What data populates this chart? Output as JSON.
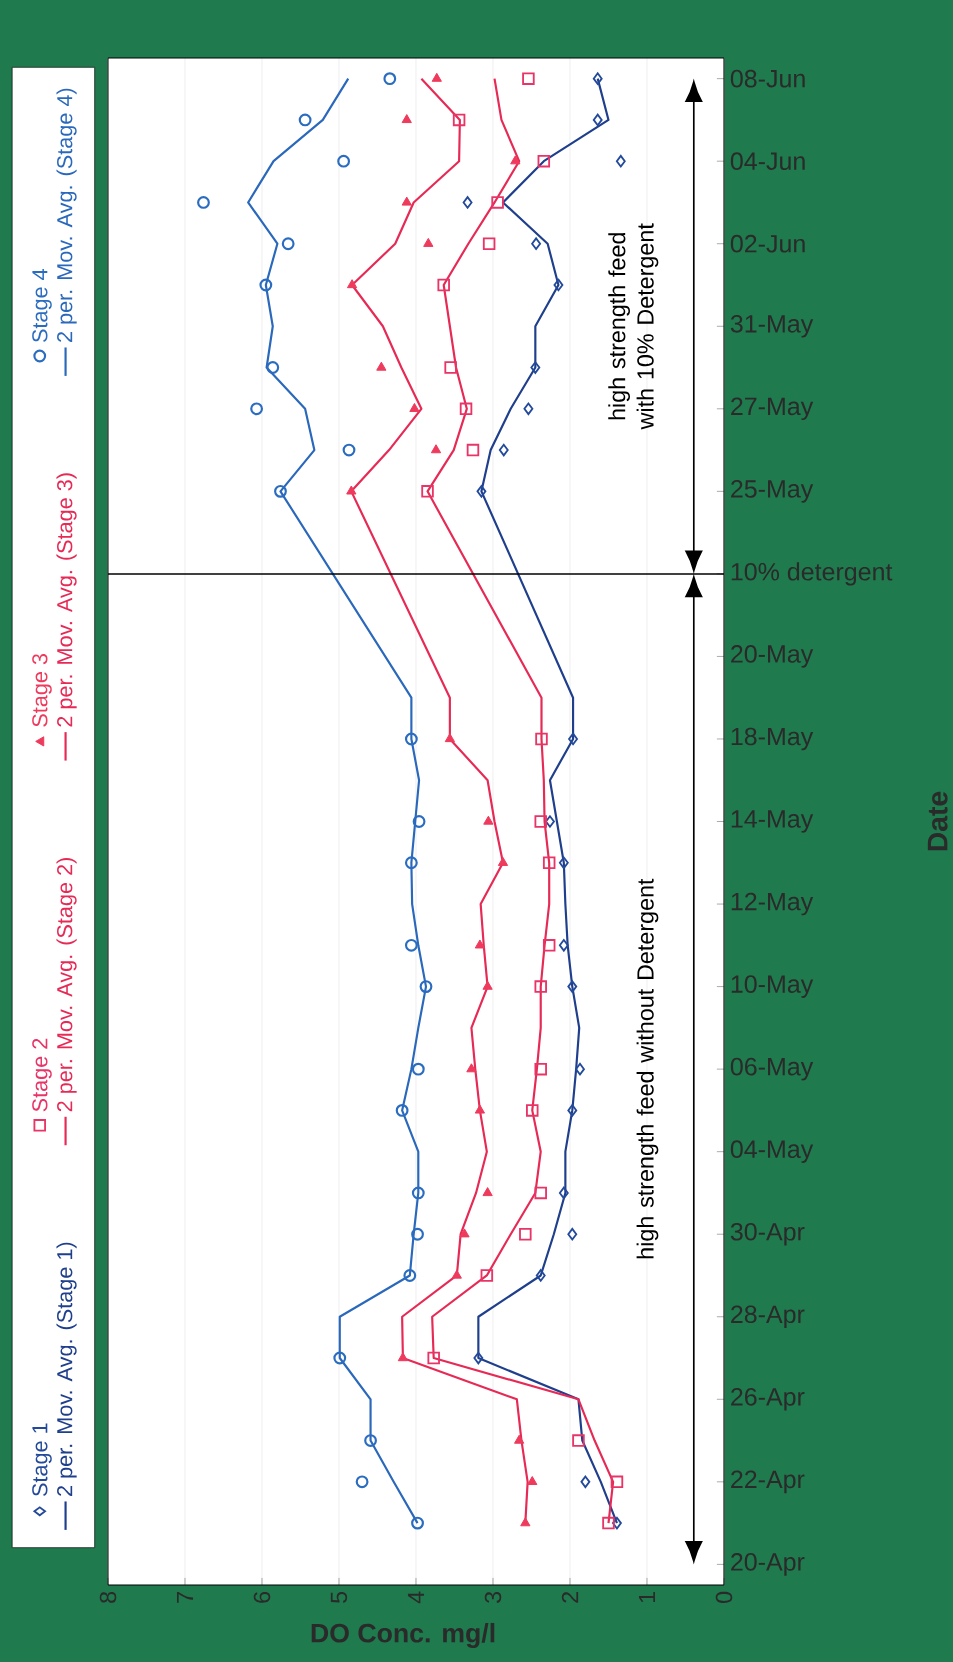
{
  "chart_data": {
    "type": "line",
    "orientation": "horizontal",
    "xlabel": "DO Conc. mg/l",
    "ylabel": "Date",
    "categories": [
      "08-Jun",
      null,
      "04-Jun",
      null,
      "02-Jun",
      null,
      "31-May",
      null,
      "27-May",
      null,
      "25-May",
      null,
      "10% detergent",
      null,
      "20-May",
      null,
      "18-May",
      null,
      "14-May",
      null,
      "12-May",
      null,
      "10-May",
      null,
      "06-May",
      null,
      "04-May",
      null,
      "30-Apr",
      null,
      "28-Apr",
      null,
      "26-Apr",
      null,
      "22-Apr",
      null,
      "20-Apr"
    ],
    "xlim": [
      8,
      0
    ],
    "xticks": [
      8,
      7,
      6,
      5,
      4,
      3,
      2,
      1,
      0
    ],
    "grid": "x",
    "legend": "left",
    "ref_lines": [
      {
        "axis": "y",
        "value": "10% detergent",
        "color": "#000000"
      }
    ],
    "annotations": [
      "high strength feed with 10% Detergent",
      "high strength feed without Detergent"
    ],
    "series": [
      {
        "name": "Stage 1",
        "type": "scatter",
        "marker": "diamond",
        "color": "#234a9a",
        "values": [
          1.64,
          1.64,
          1.34,
          3.33,
          2.44,
          2.15,
          null,
          2.45,
          2.54,
          2.86,
          3.15,
          null,
          null,
          null,
          null,
          null,
          1.96,
          null,
          2.26,
          2.08,
          null,
          2.08,
          1.97,
          null,
          1.87,
          1.97,
          null,
          2.08,
          1.97,
          2.38,
          null,
          3.19,
          null,
          null,
          1.8,
          1.39,
          null
        ]
      },
      {
        "name": "Stage 2",
        "type": "scatter",
        "marker": "square",
        "color": "#e83466",
        "values": [
          2.54,
          3.44,
          2.34,
          2.94,
          3.05,
          3.64,
          null,
          3.55,
          3.35,
          3.26,
          3.85,
          null,
          null,
          null,
          null,
          null,
          2.37,
          null,
          2.38,
          2.27,
          null,
          2.27,
          2.38,
          null,
          2.38,
          2.49,
          null,
          2.38,
          2.58,
          3.08,
          null,
          3.77,
          null,
          1.89,
          1.39,
          1.5,
          null
        ]
      },
      {
        "name": "Stage 3",
        "type": "scatter",
        "marker": "triangle",
        "color": "#ee3a5c",
        "values": [
          3.73,
          4.12,
          2.71,
          4.12,
          3.84,
          4.83,
          null,
          4.45,
          4.02,
          3.74,
          4.84,
          null,
          null,
          null,
          null,
          null,
          3.56,
          null,
          3.06,
          2.87,
          null,
          3.17,
          3.07,
          null,
          3.28,
          3.17,
          null,
          3.07,
          3.37,
          3.47,
          null,
          4.17,
          null,
          2.66,
          2.49,
          2.58,
          null
        ]
      },
      {
        "name": "Stage 4",
        "type": "scatter",
        "marker": "circle",
        "color": "#2a6cc0",
        "values": [
          4.34,
          5.44,
          4.94,
          6.76,
          5.66,
          5.95,
          null,
          5.86,
          6.07,
          4.87,
          5.76,
          null,
          null,
          null,
          null,
          null,
          4.06,
          null,
          3.96,
          4.06,
          null,
          4.06,
          3.87,
          null,
          3.97,
          4.18,
          null,
          3.97,
          3.98,
          4.08,
          null,
          4.99,
          null,
          4.59,
          4.7,
          3.98,
          null
        ]
      },
      {
        "name": "2 per. Mov. Avg. (Stage 1)",
        "type": "line",
        "line_style": "solid",
        "color": "#1f3f8c",
        "values": [
          1.64,
          1.5,
          2.34,
          2.87,
          2.29,
          2.15,
          2.45,
          2.45,
          2.77,
          3.03,
          3.15,
          null,
          null,
          null,
          null,
          1.96,
          1.96,
          2.26,
          2.17,
          2.08,
          2.06,
          2.03,
          1.97,
          1.88,
          1.92,
          1.97,
          2.06,
          2.06,
          2.21,
          2.38,
          3.19,
          3.19,
          1.89,
          1.84,
          1.6,
          1.39,
          null
        ]
      },
      {
        "name": "2 per. Mov. Avg. (Stage 2)",
        "type": "line",
        "line_style": "solid",
        "color": "#e62a55",
        "values": [
          2.98,
          2.89,
          2.66,
          2.98,
          3.32,
          3.64,
          3.56,
          3.48,
          3.34,
          3.51,
          3.85,
          null,
          null,
          null,
          null,
          2.37,
          2.37,
          2.34,
          2.33,
          2.27,
          2.27,
          2.33,
          2.38,
          2.38,
          2.43,
          2.49,
          2.38,
          2.45,
          2.77,
          3.08,
          3.79,
          3.77,
          1.89,
          1.68,
          1.44,
          1.5,
          null
        ]
      },
      {
        "name": "2 per. Mov. Avg. (Stage 3)",
        "type": "line",
        "line_style": "solid",
        "color": "#e62a55",
        "values": [
          3.93,
          3.43,
          3.44,
          4.03,
          4.27,
          4.83,
          4.43,
          4.19,
          3.93,
          4.35,
          4.84,
          null,
          null,
          null,
          null,
          3.56,
          3.56,
          3.07,
          2.98,
          2.87,
          3.16,
          3.12,
          3.07,
          3.28,
          3.23,
          3.17,
          3.08,
          3.22,
          3.42,
          3.47,
          4.18,
          4.17,
          2.69,
          2.63,
          2.55,
          2.58,
          null
        ]
      },
      {
        "name": "2 per. Mov. Avg. (Stage 4)",
        "type": "line",
        "line_style": "solid",
        "color": "#2a68bb",
        "values": [
          4.88,
          5.21,
          5.85,
          6.18,
          5.8,
          5.95,
          5.86,
          5.94,
          5.44,
          5.32,
          5.76,
          null,
          null,
          null,
          null,
          4.06,
          4.06,
          3.96,
          4.01,
          4.06,
          4.05,
          3.97,
          3.87,
          3.97,
          4.06,
          4.18,
          3.97,
          3.97,
          4.03,
          4.08,
          4.99,
          4.99,
          4.59,
          4.59,
          4.29,
          3.98,
          null
        ]
      }
    ]
  }
}
